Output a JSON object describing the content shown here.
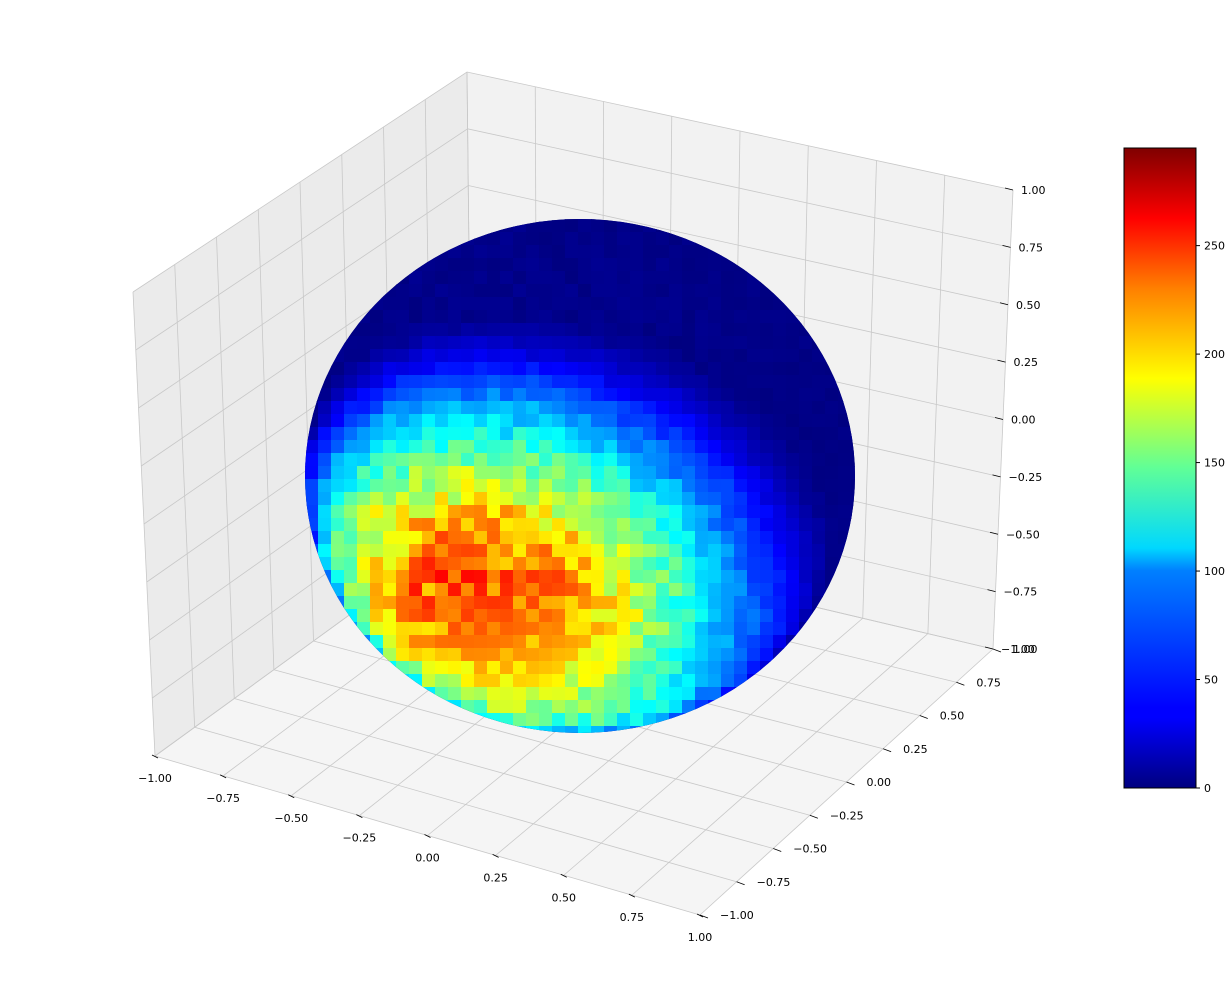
{
  "chart_data": {
    "type": "surface",
    "title": "",
    "xlabel": "",
    "ylabel": "",
    "zlabel": "",
    "surface": "unit-sphere",
    "grid": true,
    "xlim": [
      -1.0,
      1.0
    ],
    "ylim": [
      -1.0,
      1.0
    ],
    "zlim": [
      -1.0,
      1.0
    ],
    "x_ticks": [
      "−1.00",
      "−0.75",
      "−0.50",
      "−0.25",
      "0.00",
      "0.25",
      "0.50",
      "0.75",
      "1.00"
    ],
    "y_ticks": [
      "−1.00",
      "−0.75",
      "−0.50",
      "−0.25",
      "0.00",
      "0.25",
      "0.50",
      "0.75",
      "1.00"
    ],
    "z_ticks": [
      "−1.00",
      "−0.75",
      "−0.50",
      "−0.25",
      "0.00",
      "0.25",
      "0.50",
      "0.75",
      "1.00"
    ],
    "colormap": "jet",
    "colorbar": {
      "placement": "right",
      "range": [
        0,
        295
      ],
      "ticks": [
        "0",
        "50",
        "100",
        "150",
        "200",
        "250"
      ]
    },
    "hotspot": {
      "direction": [
        -0.05,
        -0.72,
        -0.69
      ],
      "peak_value": 295,
      "spread": 0.55
    },
    "colors": {
      "pane_left": "#ebebeb",
      "pane_right": "#f2f2f2",
      "pane_floor": "#f5f5f5",
      "grid": "#c8c8c8"
    }
  }
}
